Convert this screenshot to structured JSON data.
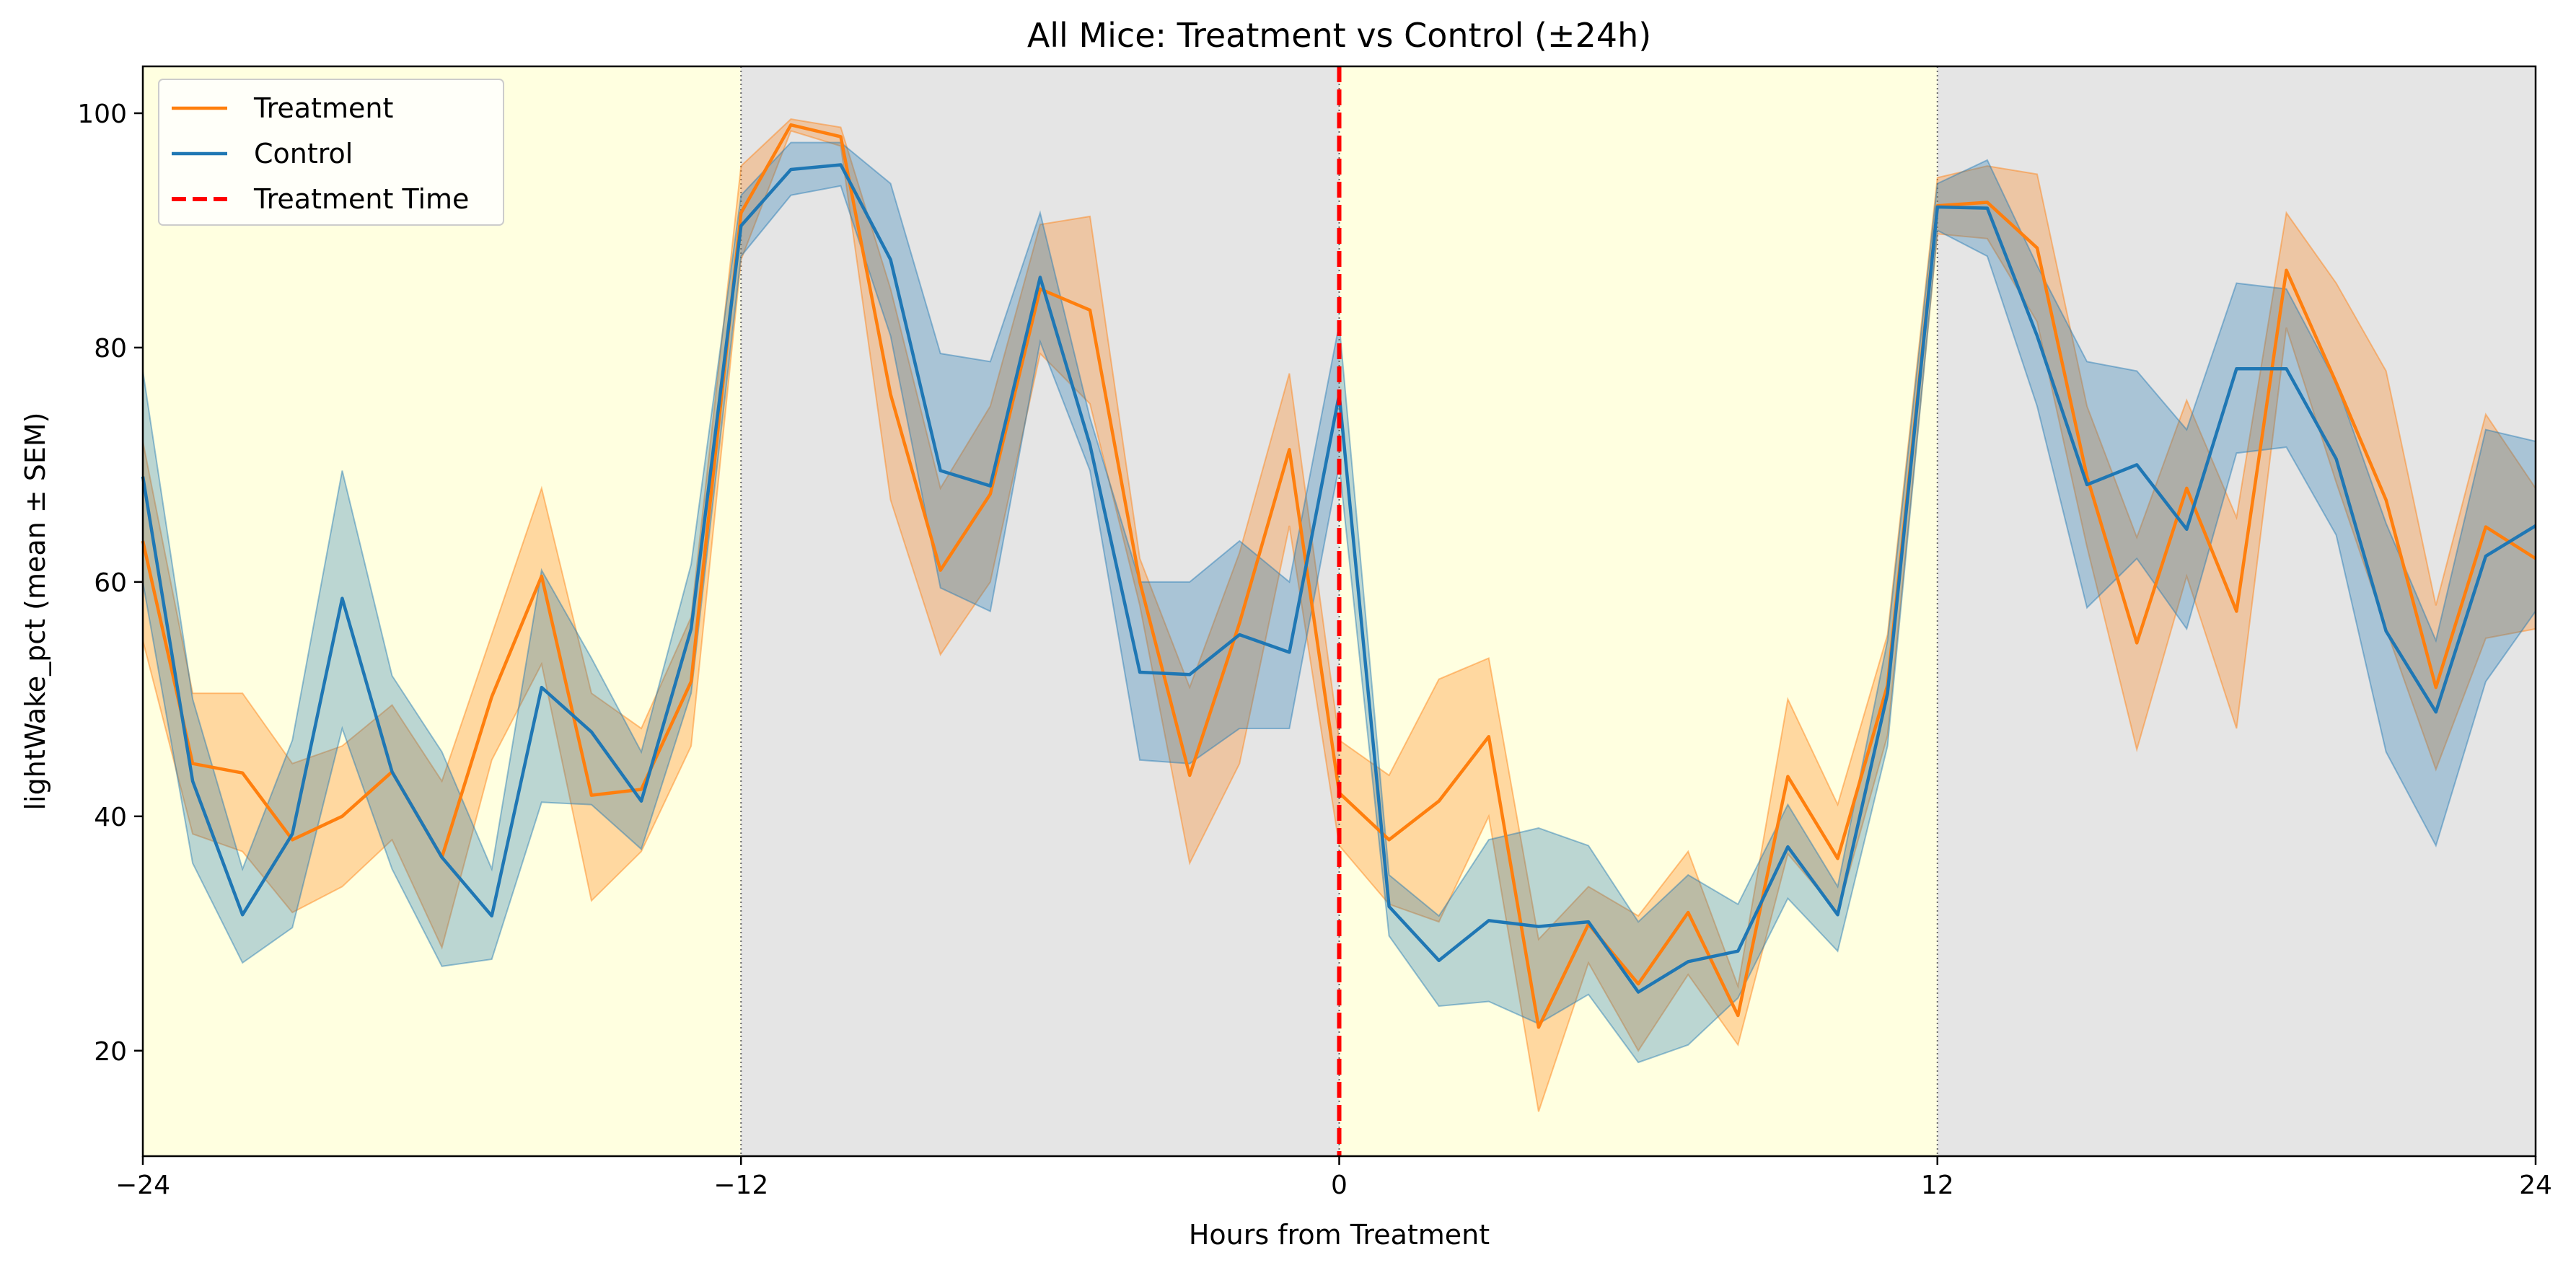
{
  "chart_data": {
    "type": "line",
    "title": "All Mice: Treatment vs Control (±24h)",
    "xlabel": "Hours from Treatment",
    "ylabel": "lightWake_pct (mean ± SEM)",
    "xlim": [
      -24,
      24
    ],
    "ylim": [
      11,
      104
    ],
    "xticks": [
      -24,
      -12,
      0,
      12,
      24
    ],
    "yticks": [
      20,
      40,
      60,
      80,
      100
    ],
    "grid": false,
    "legend_position": "top-left",
    "background_bands": [
      {
        "x0": -24,
        "x1": -12,
        "phase": "light",
        "color": "#ffffe0"
      },
      {
        "x0": -12,
        "x1": 0,
        "phase": "dark",
        "color": "#e5e5e5"
      },
      {
        "x0": 0,
        "x1": 12,
        "phase": "light",
        "color": "#ffffe0"
      },
      {
        "x0": 12,
        "x1": 24,
        "phase": "dark",
        "color": "#e5e5e5"
      }
    ],
    "vlines": [
      {
        "x": -12,
        "style": "dotted",
        "color": "#666666"
      },
      {
        "x": 12,
        "style": "dotted",
        "color": "#666666"
      },
      {
        "x": 0,
        "style": "dashed",
        "color": "#ff0000",
        "label": "Treatment Time"
      }
    ],
    "x": [
      -24,
      -23,
      -22,
      -21,
      -20,
      -19,
      -18,
      -17,
      -16,
      -15,
      -14,
      -13,
      -12,
      -11,
      -10,
      -9,
      -8,
      -7,
      -6,
      -5,
      -4,
      -3,
      -2,
      -1,
      0,
      1,
      2,
      3,
      4,
      5,
      6,
      7,
      8,
      9,
      10,
      11,
      12,
      13,
      14,
      15,
      16,
      17,
      18,
      19,
      20,
      21,
      22,
      23,
      24
    ],
    "series": [
      {
        "name": "Treatment",
        "color": "#ff7f0e",
        "values": [
          63.5,
          44.5,
          43.7,
          38.0,
          40.0,
          43.8,
          36.5,
          50.2,
          60.5,
          41.8,
          42.3,
          51.5,
          91.5,
          99.0,
          98.0,
          76.0,
          61.0,
          67.5,
          85.0,
          83.2,
          60.0,
          43.5,
          56.5,
          71.3,
          42.0,
          38.0,
          41.3,
          46.8,
          22.0,
          30.8,
          25.7,
          31.8,
          23.0,
          43.4,
          36.4,
          51.2,
          92.1,
          92.4,
          88.5,
          69.0,
          54.8,
          68.0,
          57.5,
          86.6,
          77.0,
          67.0,
          51.0,
          64.7,
          62.0
        ],
        "upper": [
          72.0,
          50.5,
          50.5,
          44.5,
          46.0,
          49.5,
          43.0,
          55.5,
          68.0,
          50.5,
          47.5,
          57.0,
          95.5,
          99.5,
          98.8,
          85.0,
          68.0,
          75.0,
          90.5,
          91.2,
          62.0,
          51.0,
          62.5,
          77.8,
          46.5,
          43.5,
          51.7,
          53.5,
          29.5,
          34.0,
          31.5,
          37.0,
          25.5,
          50.0,
          41.0,
          55.5,
          94.5,
          95.5,
          94.8,
          75.0,
          63.8,
          75.5,
          65.5,
          91.5,
          85.5,
          78.0,
          58.0,
          74.3,
          68.0
        ],
        "lower": [
          55.0,
          38.5,
          37.0,
          31.8,
          34.0,
          38.0,
          28.8,
          44.8,
          53.0,
          32.8,
          37.0,
          46.0,
          87.5,
          98.5,
          97.2,
          67.0,
          53.8,
          60.0,
          79.5,
          75.2,
          58.0,
          36.0,
          44.5,
          64.8,
          37.5,
          32.5,
          31.0,
          40.0,
          14.8,
          27.5,
          20.0,
          26.5,
          20.5,
          36.8,
          31.8,
          46.9,
          89.7,
          89.3,
          82.2,
          63.0,
          45.7,
          60.5,
          47.5,
          81.7,
          68.5,
          56.0,
          44.0,
          55.2,
          56.0
        ]
      },
      {
        "name": "Control",
        "color": "#1f77b4",
        "values": [
          69.0,
          43.0,
          31.6,
          38.5,
          58.6,
          43.8,
          36.5,
          31.5,
          51.0,
          47.2,
          41.3,
          56.0,
          90.4,
          95.2,
          95.6,
          87.5,
          69.5,
          68.2,
          86.0,
          71.7,
          52.3,
          52.1,
          55.5,
          54.0,
          76.0,
          32.3,
          27.7,
          31.1,
          30.6,
          31.0,
          25.0,
          27.6,
          28.5,
          37.4,
          31.6,
          50.5,
          92.0,
          91.9,
          81.0,
          68.3,
          70.0,
          64.5,
          78.2,
          78.2,
          70.5,
          55.8,
          48.9,
          62.2,
          64.8
        ],
        "upper": [
          78.0,
          50.0,
          35.5,
          46.5,
          69.5,
          52.0,
          45.5,
          35.5,
          61.0,
          53.5,
          45.5,
          61.5,
          93.0,
          97.5,
          97.5,
          94.0,
          79.5,
          78.8,
          91.5,
          74.0,
          60.0,
          60.0,
          63.5,
          60.0,
          82.0,
          35.0,
          31.5,
          38.0,
          39.0,
          37.5,
          31.0,
          35.0,
          32.5,
          41.0,
          34.0,
          55.0,
          94.0,
          96.0,
          87.0,
          78.8,
          78.0,
          73.0,
          85.5,
          85.0,
          77.0,
          65.0,
          55.0,
          73.0,
          72.0
        ],
        "lower": [
          60.0,
          36.0,
          27.5,
          30.5,
          47.5,
          35.5,
          27.2,
          27.8,
          41.2,
          41.0,
          37.2,
          50.5,
          87.8,
          93.0,
          93.8,
          81.0,
          59.5,
          57.5,
          80.5,
          69.5,
          44.8,
          44.5,
          47.5,
          47.5,
          70.0,
          29.8,
          23.8,
          24.2,
          22.3,
          24.8,
          19.0,
          20.5,
          24.5,
          33.0,
          28.5,
          46.0,
          90.0,
          87.8,
          75.0,
          57.8,
          62.0,
          56.0,
          71.0,
          71.5,
          64.0,
          45.5,
          37.5,
          51.5,
          57.5
        ]
      }
    ],
    "legend": [
      {
        "label": "Treatment",
        "color": "#ff7f0e",
        "style": "solid"
      },
      {
        "label": "Control",
        "color": "#1f77b4",
        "style": "solid"
      },
      {
        "label": "Treatment Time",
        "color": "#ff0000",
        "style": "dashed"
      }
    ]
  }
}
